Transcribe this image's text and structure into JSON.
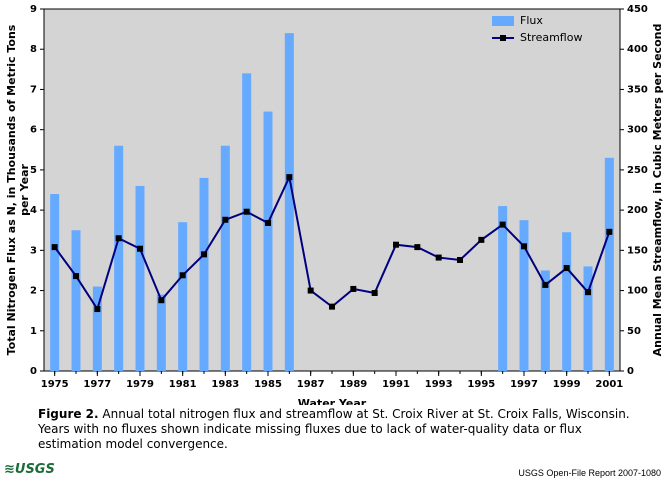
{
  "chart_data": {
    "type": "combo",
    "x": [
      1975,
      1976,
      1977,
      1978,
      1979,
      1980,
      1981,
      1982,
      1983,
      1984,
      1985,
      1986,
      1987,
      1988,
      1989,
      1990,
      1991,
      1992,
      1993,
      1994,
      1995,
      1996,
      1997,
      1998,
      1999,
      2000,
      2001
    ],
    "series": [
      {
        "name": "Flux",
        "type": "bar",
        "color": "#66aaff",
        "axis": "y",
        "values": [
          4.4,
          3.5,
          2.1,
          5.6,
          4.6,
          1.9,
          3.7,
          4.8,
          5.6,
          7.4,
          6.45,
          8.4,
          null,
          null,
          null,
          null,
          null,
          null,
          null,
          null,
          null,
          4.1,
          3.75,
          2.5,
          3.45,
          2.6,
          5.3
        ]
      },
      {
        "name": "Streamflow",
        "type": "line",
        "color": "#000080",
        "axis": "y2",
        "values": [
          154,
          118,
          77,
          165,
          152,
          88,
          119,
          145,
          188,
          198,
          184,
          241,
          100,
          80,
          102,
          97,
          157,
          154,
          141,
          138,
          163,
          182,
          155,
          107,
          128,
          98,
          173
        ]
      }
    ],
    "xlabel": "Water Year",
    "ylabel": "Total Nitrogen Flux as N, in Thousands of Metric Tons per Year",
    "y2label": "Annual Mean Streamflow, in Cubic Meters per Second",
    "xlim": [
      1974.5,
      2001.5
    ],
    "xticks": [
      1975,
      1977,
      1979,
      1981,
      1983,
      1985,
      1987,
      1989,
      1991,
      1993,
      1995,
      1997,
      1999,
      2001
    ],
    "ylim": [
      0,
      9
    ],
    "yticks": [
      0,
      1,
      2,
      3,
      4,
      5,
      6,
      7,
      8,
      9
    ],
    "y2lim": [
      0,
      450
    ],
    "y2ticks": [
      0,
      50,
      100,
      150,
      200,
      250,
      300,
      350,
      400,
      450
    ],
    "legend": "upper right",
    "background": "#d4d4d4"
  },
  "caption": {
    "label": "Figure 2.",
    "text": "Annual total nitrogen flux and streamflow at St. Croix River at St. Croix Falls, Wisconsin. Years with no fluxes shown indicate missing fluxes due to lack of water-quality data or flux estimation model convergence."
  },
  "footer": {
    "logo": "≋USGS",
    "report": "USGS Open-File Report 2007-1080"
  }
}
